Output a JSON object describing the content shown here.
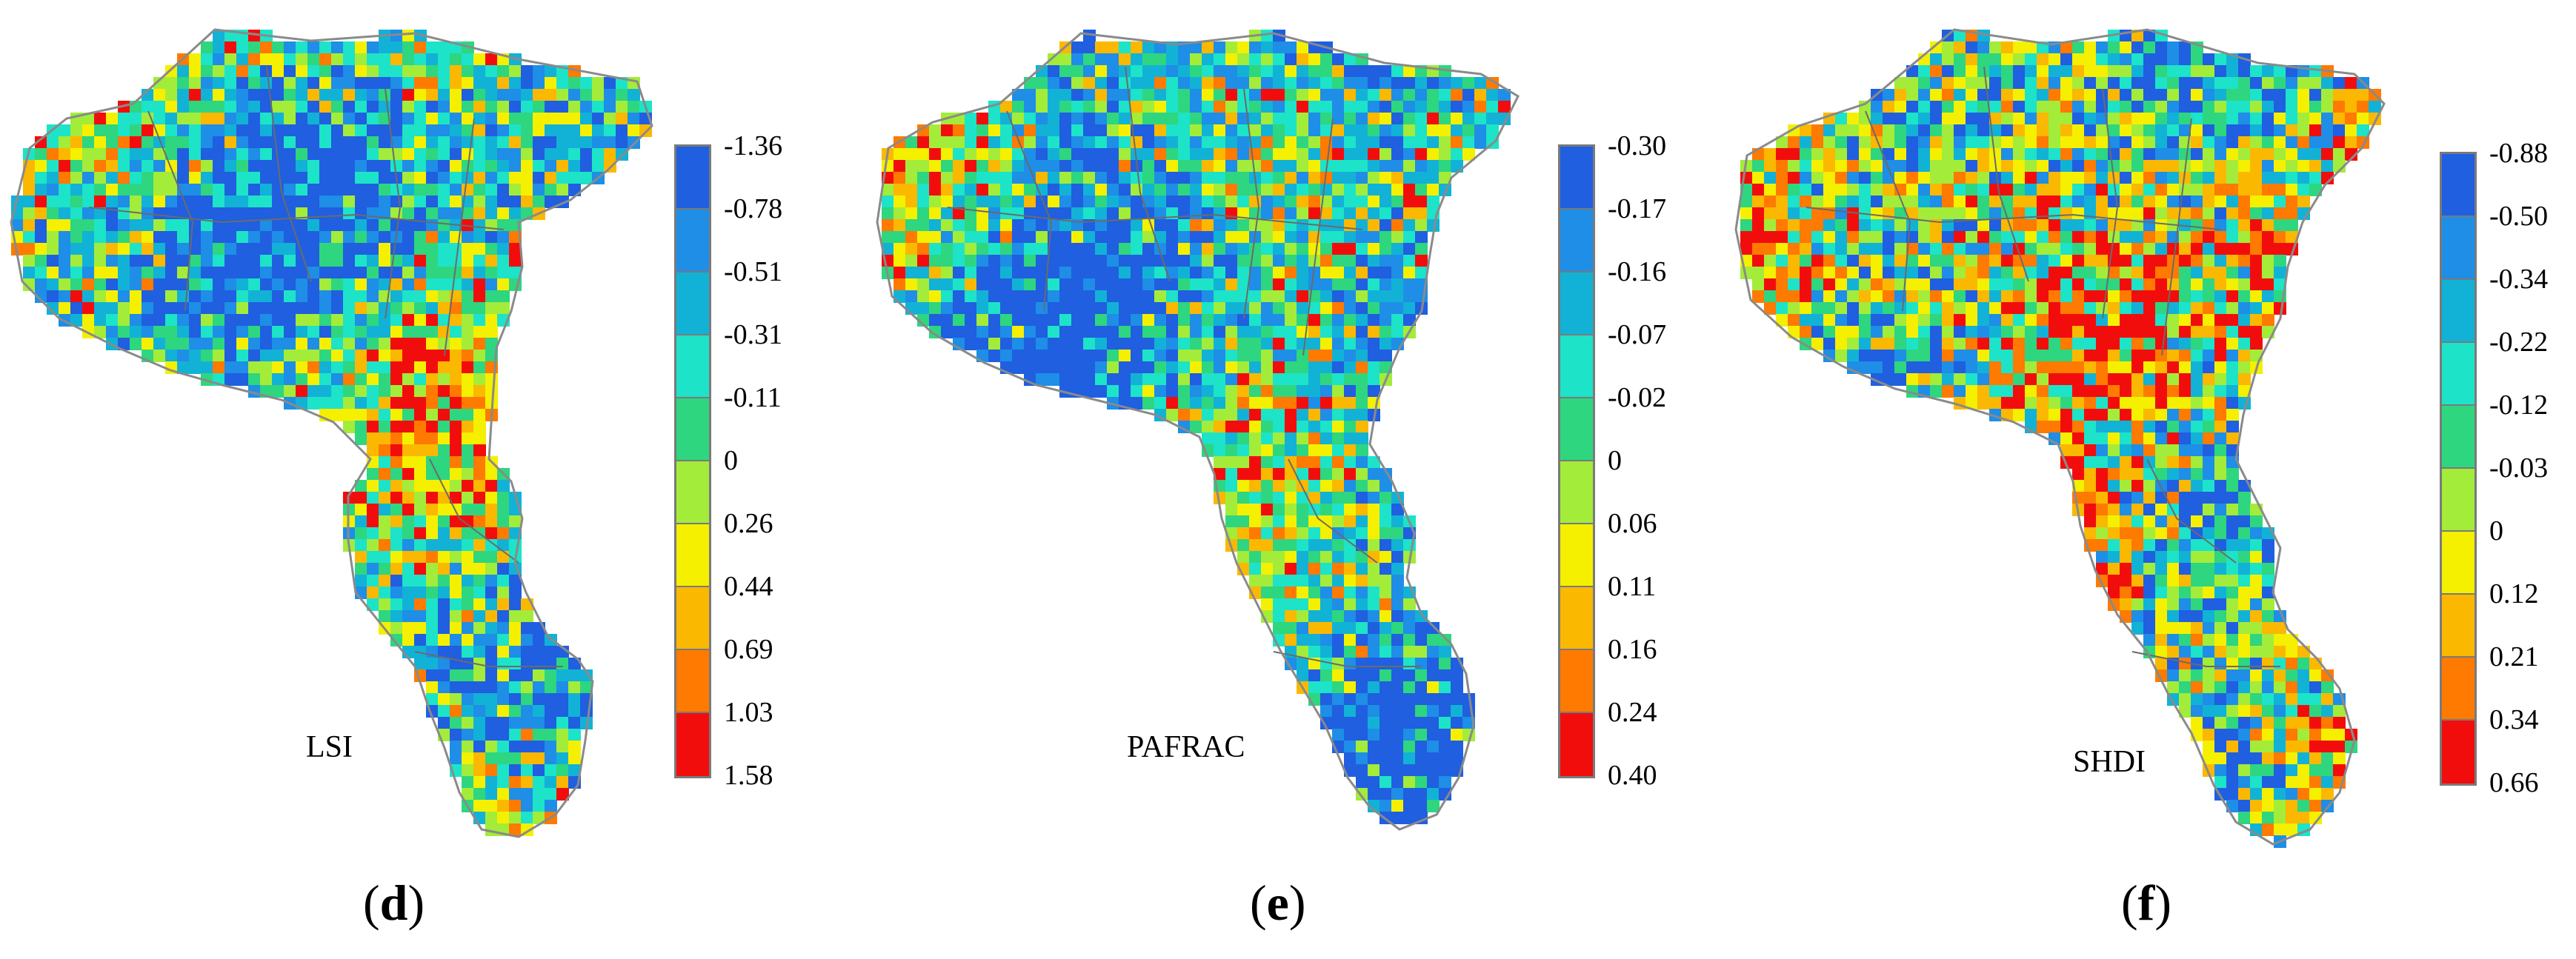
{
  "color_scale": [
    "#1f5fe0",
    "#1e8ee6",
    "#12b2d6",
    "#1de3c8",
    "#2ed67f",
    "#a3ec3a",
    "#f4f000",
    "#fbb800",
    "#ff7a00",
    "#f20d0d"
  ],
  "panels": [
    {
      "letter": "d",
      "map_label": "LSI",
      "legend_ticks": [
        "-1.36",
        "-0.78",
        "-0.51",
        "-0.31",
        "-0.11",
        "0",
        "0.26",
        "0.44",
        "0.69",
        "1.03",
        "1.58"
      ]
    },
    {
      "letter": "e",
      "map_label": "PAFRAC",
      "legend_ticks": [
        "-0.30",
        "-0.17",
        "-0.16",
        "-0.07",
        "-0.02",
        "0",
        "0.06",
        "0.11",
        "0.16",
        "0.24",
        "0.40"
      ]
    },
    {
      "letter": "f",
      "map_label": "SHDI",
      "legend_ticks": [
        "-0.88",
        "-0.50",
        "-0.34",
        "-0.22",
        "-0.12",
        "-0.03",
        "0",
        "0.12",
        "0.21",
        "0.34",
        "0.66"
      ]
    }
  ]
}
